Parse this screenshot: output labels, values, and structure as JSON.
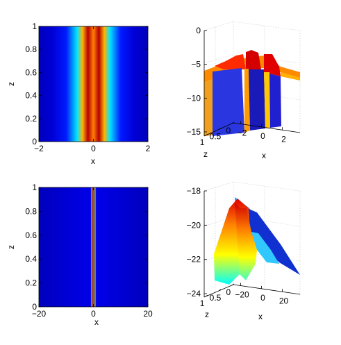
{
  "colors": {
    "jet": [
      "#00008f",
      "#0000ff",
      "#0080ff",
      "#00ffff",
      "#80ff80",
      "#ffff00",
      "#ff8000",
      "#ff0000",
      "#800000"
    ],
    "background": "#ffffff"
  },
  "chart_data": [
    {
      "type": "heatmap",
      "panel": "top-left",
      "xlabel": "x",
      "ylabel": "z",
      "xlim": [
        -2,
        2
      ],
      "ylim": [
        0,
        1
      ],
      "xticks": [
        "−2",
        "0",
        "2"
      ],
      "yticks": [
        "0",
        "0.2",
        "0.4",
        "0.6",
        "0.8",
        "1"
      ],
      "profile": {
        "x": [
          -2,
          -1.5,
          -1,
          -0.6,
          -0.4,
          -0.2,
          0,
          0.2,
          0.4,
          0.6,
          1,
          1.5,
          2
        ],
        "level": [
          0.05,
          0.08,
          0.15,
          0.35,
          0.7,
          0.95,
          0.75,
          0.95,
          0.7,
          0.35,
          0.15,
          0.08,
          0.05
        ]
      }
    },
    {
      "type": "surface",
      "panel": "top-right",
      "xlabel": "x",
      "ylabel": "z",
      "zlim": [
        -15,
        0
      ],
      "zticks": [
        "−15",
        "−10",
        "−5",
        "0"
      ],
      "xticks": [
        "−2",
        "0",
        "2"
      ],
      "yticks": [
        "1",
        "0.5",
        "0"
      ]
    },
    {
      "type": "heatmap",
      "panel": "bottom-left",
      "xlabel": "x",
      "ylabel": "z",
      "xlim": [
        -20,
        20
      ],
      "ylim": [
        0,
        1
      ],
      "xticks": [
        "−20",
        "0",
        "20"
      ],
      "yticks": [
        "0",
        "0.2",
        "0.4",
        "0.6",
        "0.8",
        "1"
      ],
      "profile": {
        "x": [
          -20,
          -1,
          -0.6,
          -0.3,
          0,
          0.3,
          0.6,
          1,
          20
        ],
        "level": [
          0.05,
          0.1,
          0.4,
          0.95,
          0.8,
          0.95,
          0.4,
          0.1,
          0.05
        ]
      }
    },
    {
      "type": "surface",
      "panel": "bottom-right",
      "xlabel": "x",
      "ylabel": "z",
      "zlim": [
        -24,
        -18
      ],
      "zticks": [
        "−24",
        "−22",
        "−20",
        "−18"
      ],
      "xticks": [
        "−20",
        "0",
        "20"
      ],
      "yticks": [
        "1",
        "0.5",
        "0"
      ]
    }
  ]
}
